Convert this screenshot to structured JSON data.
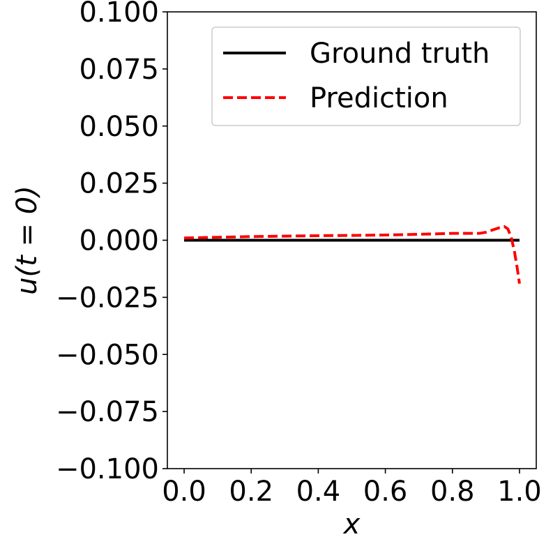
{
  "chart_data": {
    "type": "line",
    "xlabel": "x",
    "ylabel": "u(t = 0)",
    "xlim": [
      -0.05,
      1.05
    ],
    "ylim": [
      -0.1,
      0.1
    ],
    "xticks": [
      "0.0",
      "0.2",
      "0.4",
      "0.6",
      "0.8",
      "1.0"
    ],
    "yticks": [
      "0.100",
      "0.075",
      "0.050",
      "0.025",
      "0.000",
      "−0.025",
      "−0.050",
      "−0.075",
      "−0.100"
    ],
    "legend": {
      "position": "top-right",
      "entries": [
        "Ground truth",
        "Prediction"
      ]
    },
    "grid": false,
    "series": [
      {
        "name": "Ground truth",
        "color": "#000000",
        "style": "solid",
        "x": [
          0.0,
          1.0
        ],
        "y": [
          0.0,
          0.0
        ]
      },
      {
        "name": "Prediction",
        "color": "#ff0000",
        "style": "dashed",
        "x": [
          0.0,
          0.1,
          0.2,
          0.3,
          0.4,
          0.5,
          0.6,
          0.7,
          0.8,
          0.85,
          0.88,
          0.9,
          0.92,
          0.94,
          0.955,
          0.965,
          0.975,
          0.985,
          0.993,
          1.0
        ],
        "y": [
          0.001,
          0.0013,
          0.0016,
          0.0018,
          0.002,
          0.0021,
          0.0023,
          0.0026,
          0.003,
          0.003,
          0.003,
          0.0035,
          0.0045,
          0.0055,
          0.006,
          0.005,
          0.0015,
          -0.005,
          -0.012,
          -0.019
        ]
      }
    ]
  }
}
